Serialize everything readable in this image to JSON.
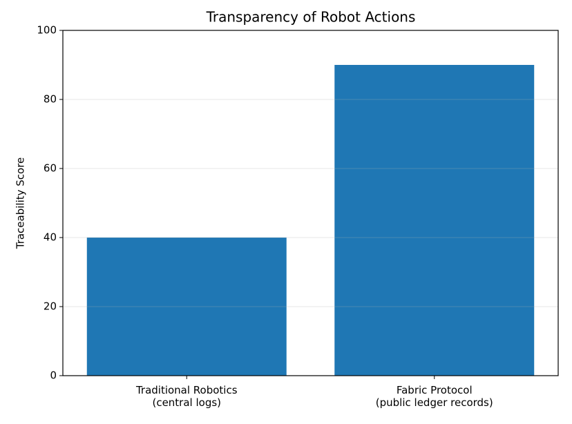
{
  "chart_data": {
    "type": "bar",
    "title": "Transparency of Robot Actions",
    "ylabel": "Traceability Score",
    "categories": [
      [
        "Traditional Robotics",
        "(central logs)"
      ],
      [
        "Fabric Protocol",
        "(public ledger records)"
      ]
    ],
    "values": [
      40,
      90
    ],
    "color": "#1f77b4",
    "ylim": [
      0,
      100
    ],
    "yticks": [
      0,
      20,
      40,
      60,
      80,
      100
    ],
    "grid": true
  }
}
